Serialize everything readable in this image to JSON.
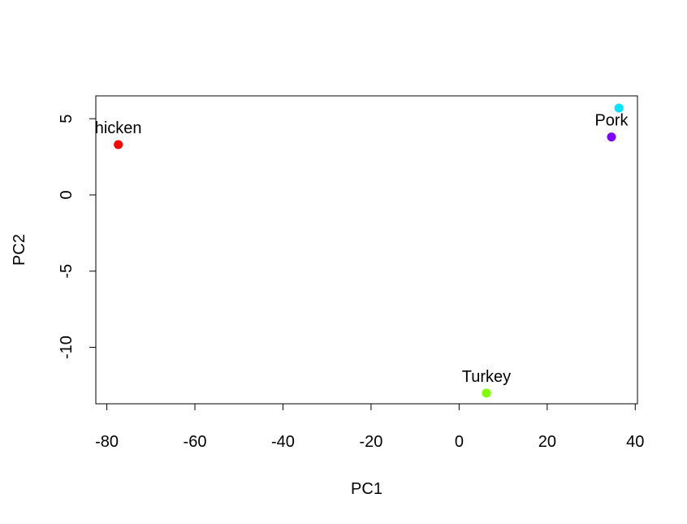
{
  "chart_data": {
    "type": "scatter",
    "xlabel": "PC1",
    "ylabel": "PC2",
    "xlim": [
      -82.5,
      40.5
    ],
    "ylim": [
      -13.7,
      6.5
    ],
    "x_ticks": [
      -80,
      -60,
      -40,
      -20,
      0,
      20,
      40
    ],
    "y_ticks": [
      -10,
      -5,
      0,
      5
    ],
    "grid": false,
    "points": [
      {
        "x": 36.3,
        "y": 5.7,
        "color": "#00e5ff",
        "label": "",
        "label_offset": "none"
      },
      {
        "x": -77.4,
        "y": 3.3,
        "color": "#ff0000",
        "label": "hicken",
        "label_offset": "above"
      },
      {
        "x": 34.6,
        "y": 3.8,
        "color": "#8000ff",
        "label": "Pork",
        "label_offset": "above"
      },
      {
        "x": 6.2,
        "y": -13.0,
        "color": "#80ff00",
        "label": "Turkey",
        "label_offset": "above"
      }
    ]
  }
}
